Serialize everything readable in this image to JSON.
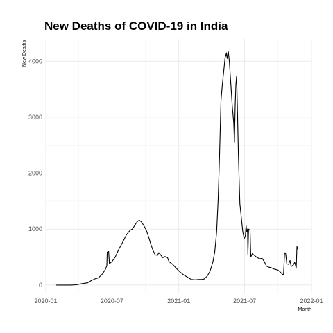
{
  "chart_data": {
    "type": "line",
    "title": "New Deaths of COVID-19 in India",
    "xlabel": "Month",
    "ylabel": "New Deaths",
    "grid": true,
    "legend": "none",
    "xlim": [
      "2020-01-01",
      "2022-01-01"
    ],
    "ylim": [
      -150,
      4400
    ],
    "x_ticks": [
      "2020-01-01",
      "2020-07-01",
      "2021-01-01",
      "2021-07-01",
      "2022-01-01"
    ],
    "x_tick_labels": [
      "2020-01",
      "2020-07",
      "2021-01",
      "2021-07",
      "2022-01"
    ],
    "y_ticks": [
      0,
      1000,
      2000,
      3000,
      4000
    ],
    "y_tick_labels": [
      "0",
      "1000",
      "2000",
      "3000",
      "4000"
    ],
    "series": [
      {
        "line_color": "#000000",
        "points": [
          [
            "2020-01-30",
            0
          ],
          [
            "2020-02-20",
            0
          ],
          [
            "2020-03-10",
            0
          ],
          [
            "2020-03-25",
            5
          ],
          [
            "2020-04-05",
            20
          ],
          [
            "2020-04-15",
            30
          ],
          [
            "2020-04-25",
            40
          ],
          [
            "2020-05-05",
            80
          ],
          [
            "2020-05-15",
            110
          ],
          [
            "2020-05-25",
            130
          ],
          [
            "2020-06-05",
            200
          ],
          [
            "2020-06-13",
            280
          ],
          [
            "2020-06-17",
            350
          ],
          [
            "2020-06-18",
            590
          ],
          [
            "2020-06-22",
            600
          ],
          [
            "2020-06-24",
            380
          ],
          [
            "2020-07-01",
            420
          ],
          [
            "2020-07-10",
            500
          ],
          [
            "2020-07-20",
            640
          ],
          [
            "2020-07-30",
            760
          ],
          [
            "2020-08-10",
            900
          ],
          [
            "2020-08-20",
            980
          ],
          [
            "2020-08-26",
            1000
          ],
          [
            "2020-09-01",
            1060
          ],
          [
            "2020-09-08",
            1130
          ],
          [
            "2020-09-14",
            1160
          ],
          [
            "2020-09-20",
            1130
          ],
          [
            "2020-09-26",
            1070
          ],
          [
            "2020-10-03",
            990
          ],
          [
            "2020-10-10",
            860
          ],
          [
            "2020-10-16",
            730
          ],
          [
            "2020-10-22",
            620
          ],
          [
            "2020-10-28",
            540
          ],
          [
            "2020-11-03",
            530
          ],
          [
            "2020-11-07",
            580
          ],
          [
            "2020-11-12",
            540
          ],
          [
            "2020-11-18",
            490
          ],
          [
            "2020-11-24",
            510
          ],
          [
            "2020-12-01",
            490
          ],
          [
            "2020-12-05",
            420
          ],
          [
            "2020-12-15",
            370
          ],
          [
            "2020-12-25",
            300
          ],
          [
            "2021-01-05",
            230
          ],
          [
            "2021-01-15",
            180
          ],
          [
            "2021-01-25",
            140
          ],
          [
            "2021-02-05",
            100
          ],
          [
            "2021-02-15",
            95
          ],
          [
            "2021-02-25",
            100
          ],
          [
            "2021-03-05",
            100
          ],
          [
            "2021-03-12",
            110
          ],
          [
            "2021-03-20",
            160
          ],
          [
            "2021-03-28",
            250
          ],
          [
            "2021-04-05",
            420
          ],
          [
            "2021-04-10",
            600
          ],
          [
            "2021-04-15",
            950
          ],
          [
            "2021-04-19",
            1500
          ],
          [
            "2021-04-23",
            2300
          ],
          [
            "2021-04-27",
            3300
          ],
          [
            "2021-05-01",
            3600
          ],
          [
            "2021-05-05",
            3850
          ],
          [
            "2021-05-08",
            4050
          ],
          [
            "2021-05-10",
            4100
          ],
          [
            "2021-05-12",
            4150
          ],
          [
            "2021-05-14",
            4050
          ],
          [
            "2021-05-17",
            4180
          ],
          [
            "2021-05-20",
            4000
          ],
          [
            "2021-05-24",
            3600
          ],
          [
            "2021-05-28",
            3200
          ],
          [
            "2021-06-01",
            2900
          ],
          [
            "2021-06-03",
            2550
          ],
          [
            "2021-06-05",
            3200
          ],
          [
            "2021-06-07",
            3580
          ],
          [
            "2021-06-09",
            3740
          ],
          [
            "2021-06-11",
            3200
          ],
          [
            "2021-06-14",
            2300
          ],
          [
            "2021-06-18",
            1450
          ],
          [
            "2021-06-22",
            1200
          ],
          [
            "2021-06-26",
            950
          ],
          [
            "2021-06-30",
            830
          ],
          [
            "2021-07-03",
            880
          ],
          [
            "2021-07-05",
            1070
          ],
          [
            "2021-07-07",
            950
          ],
          [
            "2021-07-09",
            1000
          ],
          [
            "2021-07-10",
            550
          ],
          [
            "2021-07-12",
            1000
          ],
          [
            "2021-07-16",
            980
          ],
          [
            "2021-07-18",
            500
          ],
          [
            "2021-07-22",
            560
          ],
          [
            "2021-07-28",
            530
          ],
          [
            "2021-08-05",
            490
          ],
          [
            "2021-08-12",
            470
          ],
          [
            "2021-08-18",
            480
          ],
          [
            "2021-08-24",
            420
          ],
          [
            "2021-08-30",
            340
          ],
          [
            "2021-09-05",
            320
          ],
          [
            "2021-09-12",
            310
          ],
          [
            "2021-09-18",
            290
          ],
          [
            "2021-09-24",
            280
          ],
          [
            "2021-09-30",
            270
          ],
          [
            "2021-10-06",
            240
          ],
          [
            "2021-10-12",
            200
          ],
          [
            "2021-10-16",
            180
          ],
          [
            "2021-10-19",
            580
          ],
          [
            "2021-10-22",
            560
          ],
          [
            "2021-10-25",
            380
          ],
          [
            "2021-10-30",
            370
          ],
          [
            "2021-11-03",
            440
          ],
          [
            "2021-11-06",
            330
          ],
          [
            "2021-11-12",
            360
          ],
          [
            "2021-11-16",
            410
          ],
          [
            "2021-11-20",
            300
          ],
          [
            "2021-11-22",
            690
          ],
          [
            "2021-11-25",
            630
          ]
        ]
      }
    ]
  }
}
